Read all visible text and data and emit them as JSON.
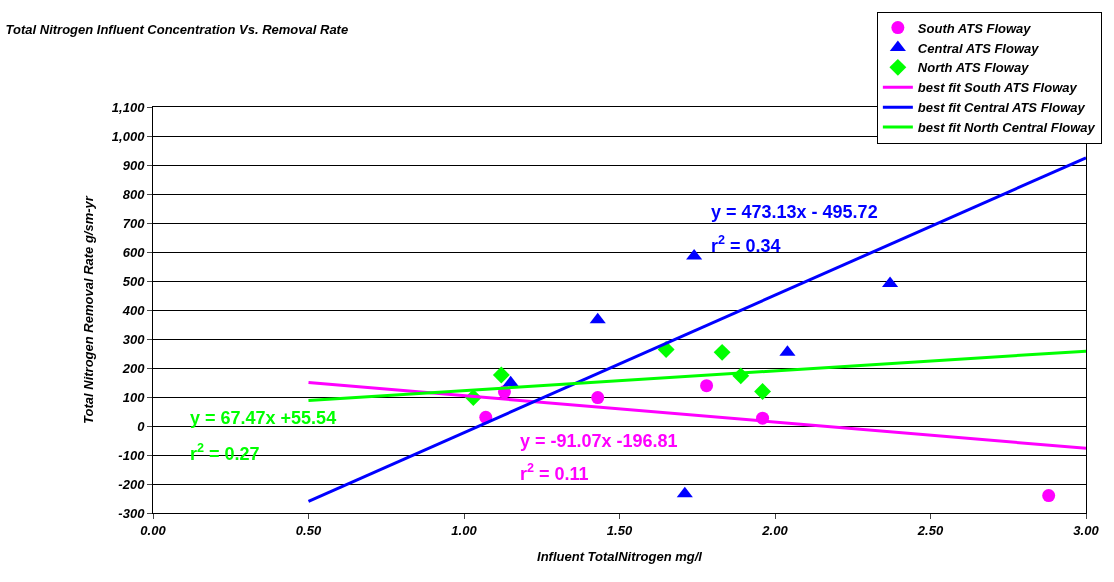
{
  "chart_data": {
    "type": "scatter",
    "title": "Total Nitrogen Influent Concentration Vs. Removal Rate",
    "xlabel": "Influent TotalNitrogen mg/l",
    "ylabel": "Total Nitrogen Removal Rate g/sm-yr",
    "xlim": [
      0,
      3
    ],
    "ylim": [
      -300,
      1100
    ],
    "xticks": [
      {
        "value": 0,
        "label": "0.00"
      },
      {
        "value": 0.5,
        "label": "0.50"
      },
      {
        "value": 1,
        "label": "1.00"
      },
      {
        "value": 1.5,
        "label": "1.50"
      },
      {
        "value": 2,
        "label": "2.00"
      },
      {
        "value": 2.5,
        "label": "2.50"
      },
      {
        "value": 3,
        "label": "3.00"
      }
    ],
    "yticks": [
      -300,
      -200,
      -100,
      0,
      100,
      200,
      300,
      400,
      500,
      600,
      700,
      800,
      900,
      {
        "value": 1000,
        "label": "1,000"
      },
      {
        "value": 1100,
        "label": "1,100"
      }
    ],
    "grid": "y",
    "legend": "top right",
    "series": [
      {
        "name": "South ATS Floway",
        "marker": "circle",
        "color": "#ff00ff",
        "x": [
          1.07,
          1.13,
          1.43,
          1.78,
          1.96,
          2.88
        ],
        "values": [
          30,
          118,
          98,
          139,
          27,
          -240
        ]
      },
      {
        "name": "Central ATS Floway",
        "marker": "triangle",
        "color": "#0000ff",
        "x": [
          1.15,
          1.43,
          1.74,
          1.71,
          2.04,
          2.37
        ],
        "values": [
          149,
          366,
          586,
          -234,
          254,
          491
        ]
      },
      {
        "name": "North ATS Floway",
        "marker": "diamond",
        "color": "#00ff00",
        "x": [
          1.03,
          1.12,
          1.65,
          1.83,
          1.89,
          1.96
        ],
        "values": [
          98,
          176,
          264,
          254,
          173,
          119
        ]
      },
      {
        "name": "best fit South ATS Floway",
        "type": "line",
        "marker": "none",
        "color": "#ff00ff",
        "x": [
          0.5,
          3.0
        ],
        "values": [
          150,
          -77
        ]
      },
      {
        "name": "best fit Central ATS Floway",
        "type": "line",
        "marker": "none",
        "color": "#0000ff",
        "x": [
          0.5,
          3.0
        ],
        "values": [
          -260,
          925
        ]
      },
      {
        "name": "best fit North Central Floway",
        "type": "line",
        "marker": "none",
        "color": "#00ff00",
        "x": [
          0.5,
          3.0
        ],
        "values": [
          88,
          258
        ]
      }
    ],
    "annotations": [
      "y = -91.07x -196.81",
      "r$^{2}$ = 0.11",
      "y = 473.13x - 495.72",
      "r$^{2}$ = 0.34",
      "y = 67.47x +55.54",
      "r$^{2}$ = 0.27"
    ]
  }
}
